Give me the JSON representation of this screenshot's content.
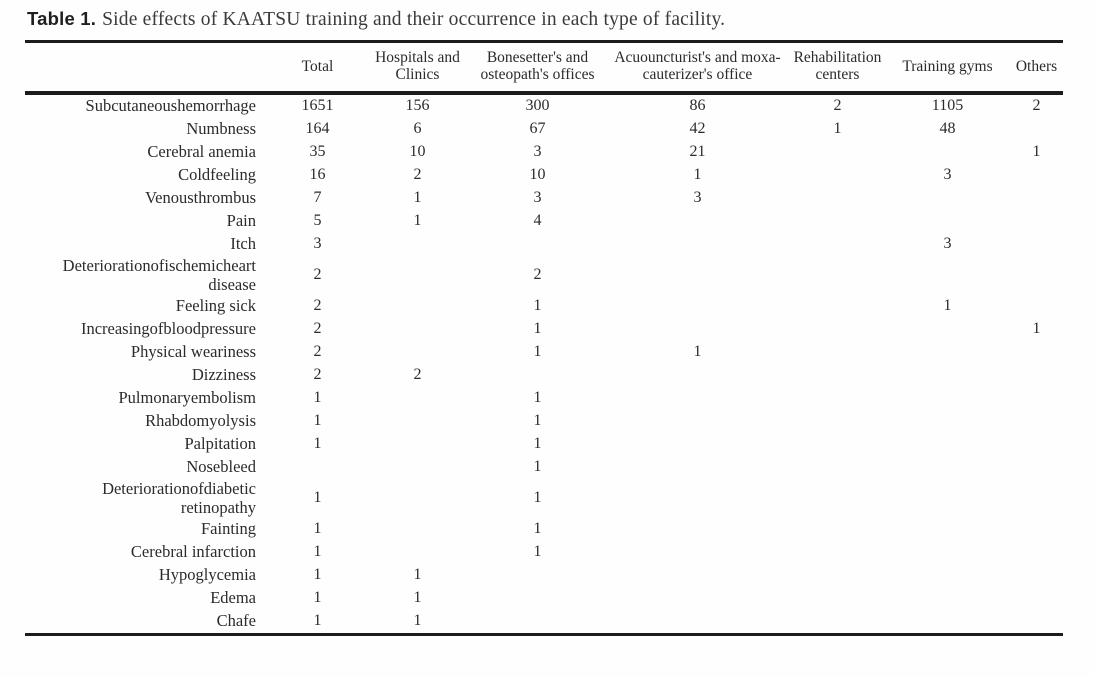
{
  "caption": {
    "label": "Table 1.",
    "text": "Side effects of KAATSU training and their occurrence in each type of facility."
  },
  "table": {
    "columns": [
      "Total",
      "Hospitals and Clinics",
      "Bonesetter's and osteopath's offices",
      "Acuouncturist's and moxa-cauterizer's office",
      "Rehabilitation centers",
      "Training gyms",
      "Others"
    ],
    "rows": [
      {
        "label": "Subcutaneoushemorrhage",
        "values": [
          "1651",
          "156",
          "300",
          "86",
          "2",
          "1105",
          "2"
        ]
      },
      {
        "label": "Numbness",
        "values": [
          "164",
          "6",
          "67",
          "42",
          "1",
          "48",
          ""
        ]
      },
      {
        "label": "Cerebral anemia",
        "values": [
          "35",
          "10",
          "3",
          "21",
          "",
          "",
          "1"
        ]
      },
      {
        "label": "Coldfeeling",
        "values": [
          "16",
          "2",
          "10",
          "1",
          "",
          "3",
          ""
        ]
      },
      {
        "label": "Venousthrombus",
        "values": [
          "7",
          "1",
          "3",
          "3",
          "",
          "",
          ""
        ]
      },
      {
        "label": "Pain",
        "values": [
          "5",
          "1",
          "4",
          "",
          "",
          "",
          ""
        ]
      },
      {
        "label": "Itch",
        "values": [
          "3",
          "",
          "",
          "",
          "",
          "3",
          ""
        ]
      },
      {
        "label": "Deteriorationofischemicheart disease",
        "values": [
          "2",
          "",
          "2",
          "",
          "",
          "",
          ""
        ]
      },
      {
        "label": "Feeling sick",
        "values": [
          "2",
          "",
          "1",
          "",
          "",
          "1",
          ""
        ]
      },
      {
        "label": "Increasingofbloodpressure",
        "values": [
          "2",
          "",
          "1",
          "",
          "",
          "",
          "1"
        ]
      },
      {
        "label": "Physical weariness",
        "values": [
          "2",
          "",
          "1",
          "1",
          "",
          "",
          ""
        ]
      },
      {
        "label": "Dizziness",
        "values": [
          "2",
          "2",
          "",
          "",
          "",
          "",
          ""
        ]
      },
      {
        "label": "Pulmonaryembolism",
        "values": [
          "1",
          "",
          "1",
          "",
          "",
          "",
          ""
        ]
      },
      {
        "label": "Rhabdomyolysis",
        "values": [
          "1",
          "",
          "1",
          "",
          "",
          "",
          ""
        ]
      },
      {
        "label": "Palpitation",
        "values": [
          "1",
          "",
          "1",
          "",
          "",
          "",
          ""
        ]
      },
      {
        "label": "Nosebleed",
        "values": [
          "",
          "",
          "1",
          "",
          "",
          "",
          ""
        ]
      },
      {
        "label": "Deteriorationofdiabetic retinopathy",
        "values": [
          "1",
          "",
          "1",
          "",
          "",
          "",
          ""
        ]
      },
      {
        "label": "Fainting",
        "values": [
          "1",
          "",
          "1",
          "",
          "",
          "",
          ""
        ]
      },
      {
        "label": "Cerebral infarction",
        "values": [
          "1",
          "",
          "1",
          "",
          "",
          "",
          ""
        ]
      },
      {
        "label": "Hypoglycemia",
        "values": [
          "1",
          "1",
          "",
          "",
          "",
          "",
          ""
        ]
      },
      {
        "label": "Edema",
        "values": [
          "1",
          "1",
          "",
          "",
          "",
          "",
          ""
        ]
      },
      {
        "label": "Chafe",
        "values": [
          "1",
          "1",
          "",
          "",
          "",
          "",
          ""
        ]
      }
    ]
  }
}
